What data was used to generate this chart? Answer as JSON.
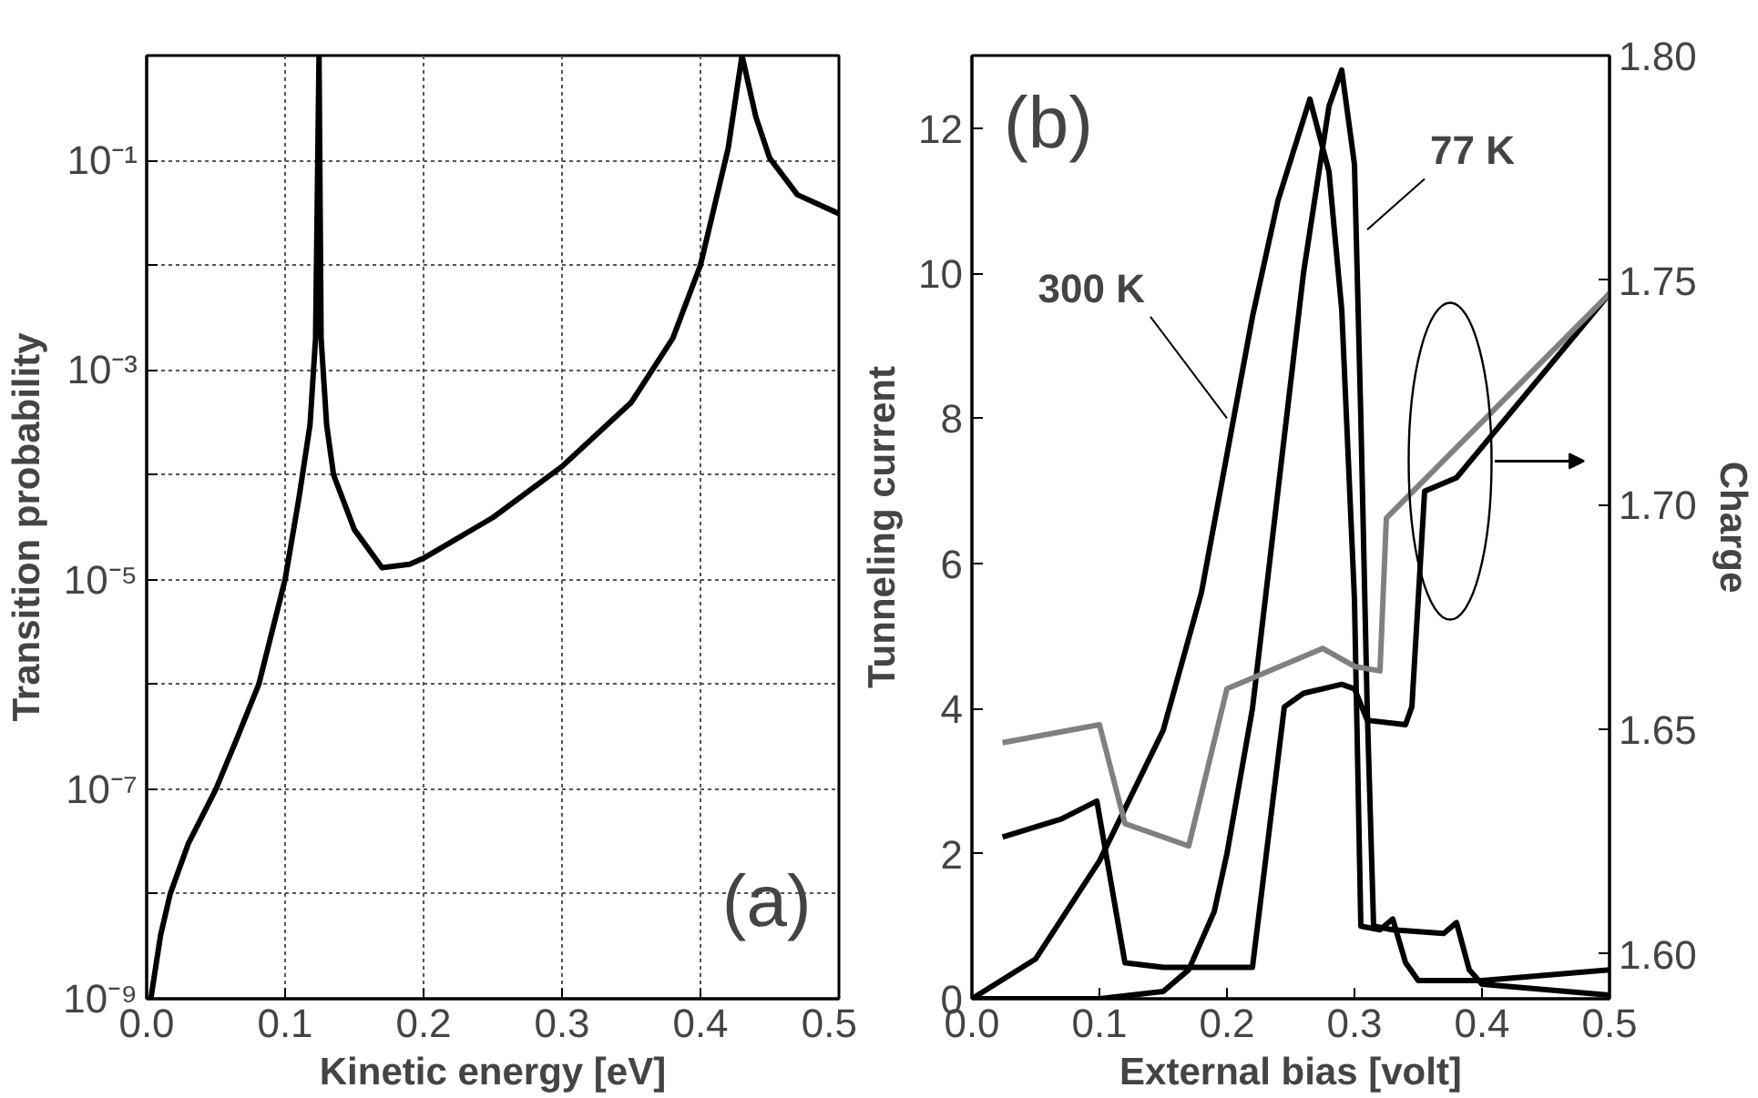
{
  "chart_data": [
    {
      "type": "line",
      "xlabel": "Kinetic energy [eV]",
      "ylabel": "Transition probability",
      "log": "y",
      "grid": true,
      "line_style": "solid",
      "xlim": [
        0,
        0.5
      ],
      "xticks": [
        {
          "value": 0,
          "label": "0.0"
        },
        {
          "value": 0.1,
          "label": "0.1"
        },
        {
          "value": 0.2,
          "label": "0.2"
        },
        {
          "value": 0.3,
          "label": "0.3"
        },
        {
          "value": 0.4,
          "label": "0.4"
        },
        {
          "value": 0.5,
          "label": "0.5"
        }
      ],
      "ylim": [
        1e-09,
        1
      ],
      "yticks": [
        {
          "value": 1e-09,
          "label": "10⁻⁹"
        },
        {
          "value": 1e-08,
          "label": null
        },
        {
          "value": 1e-07,
          "label": "10⁻⁷"
        },
        {
          "value": 1e-06,
          "label": null
        },
        {
          "value": 1e-05,
          "label": "10⁻⁵"
        },
        {
          "value": 0.0001,
          "label": null
        },
        {
          "value": 0.001,
          "label": "10⁻³"
        },
        {
          "value": 0.01,
          "label": null
        },
        {
          "value": 0.1,
          "label": "10⁻¹"
        }
      ],
      "annotations": [
        "(a)"
      ],
      "series": [
        {
          "color": "#000000",
          "x": [
            0.003,
            0.01,
            0.017,
            0.03,
            0.05,
            0.065,
            0.081,
            0.1,
            0.11,
            0.118,
            0.122,
            0.1245,
            0.126,
            0.13,
            0.135,
            0.15,
            0.17,
            0.19,
            0.2,
            0.25,
            0.3,
            0.35,
            0.38,
            0.4,
            0.42,
            0.43,
            0.44,
            0.45,
            0.47,
            0.5
          ],
          "values": [
            1e-09,
            4e-09,
            1e-08,
            3e-08,
            1e-07,
            3e-07,
            1e-06,
            1e-05,
            6e-05,
            0.0003,
            0.002,
            1,
            0.002,
            0.0003,
            0.0001,
            3e-05,
            1.3e-05,
            1.4e-05,
            1.6e-05,
            3.9e-05,
            0.00012,
            0.00049,
            0.002,
            0.01,
            0.13,
            1,
            0.26,
            0.105,
            0.047,
            0.031
          ]
        }
      ]
    },
    {
      "type": "line",
      "xlabel": "External bias [volt]",
      "ylabel": "Tunneling current",
      "y2label": "Charge",
      "grid": false,
      "line_style": "solid",
      "xlim": [
        0,
        0.5
      ],
      "xticks": [
        {
          "value": 0,
          "label": "0.0"
        },
        {
          "value": 0.1,
          "label": "0.1"
        },
        {
          "value": 0.2,
          "label": "0.2"
        },
        {
          "value": 0.3,
          "label": "0.3"
        },
        {
          "value": 0.4,
          "label": "0.4"
        },
        {
          "value": 0.5,
          "label": "0.5"
        }
      ],
      "ylim": [
        0,
        13
      ],
      "yticks": [
        0,
        2,
        4,
        6,
        8,
        10,
        12
      ],
      "y2lim": [
        1.59,
        1.8
      ],
      "y2ticks": [
        {
          "value": 1.6,
          "label": "1.60"
        },
        {
          "value": 1.65,
          "label": "1.65"
        },
        {
          "value": 1.7,
          "label": "1.70"
        },
        {
          "value": 1.75,
          "label": "1.75"
        },
        {
          "value": 1.8,
          "label": "1.80"
        }
      ],
      "annotations": [
        "(b)",
        {
          "text": "300 K",
          "x": 0.2,
          "y": 8
        },
        {
          "text": "77 K",
          "x": 0.31,
          "y": 10.6
        }
      ],
      "series": [
        {
          "color": "#000000",
          "x": [
            0,
            0.05,
            0.1,
            0.15,
            0.18,
            0.2,
            0.22,
            0.24,
            0.265,
            0.28,
            0.29,
            0.3,
            0.305,
            0.32,
            0.33,
            0.34,
            0.35,
            0.4,
            0.5
          ],
          "values": [
            0,
            0.55,
            1.9,
            3.7,
            5.6,
            7.5,
            9.4,
            11.0,
            12.4,
            11.4,
            9.5,
            5.5,
            1.0,
            0.95,
            1.1,
            0.5,
            0.25,
            0.25,
            0.4
          ]
        },
        {
          "color": "#000000",
          "x": [
            0,
            0.1,
            0.15,
            0.17,
            0.19,
            0.2,
            0.22,
            0.24,
            0.26,
            0.28,
            0.29,
            0.3,
            0.305,
            0.31,
            0.315,
            0.33,
            0.37,
            0.38,
            0.39,
            0.4,
            0.5
          ],
          "values": [
            0,
            0,
            0.1,
            0.4,
            1.2,
            2.0,
            4.0,
            7.0,
            10.0,
            12.3,
            12.8,
            11.5,
            8,
            4,
            1.0,
            0.95,
            0.9,
            1.05,
            0.4,
            0.2,
            0.05
          ]
        },
        {
          "color": "#000000",
          "axis": "y2",
          "x": [
            0.024,
            0.07,
            0.098,
            0.12,
            0.15,
            0.22,
            0.245,
            0.26,
            0.29,
            0.3,
            0.31,
            0.34,
            0.345,
            0.355,
            0.38,
            0.5
          ],
          "values": [
            1.626,
            1.63,
            1.634,
            1.598,
            1.597,
            1.597,
            1.655,
            1.658,
            1.66,
            1.659,
            1.652,
            1.651,
            1.655,
            1.703,
            1.706,
            1.747
          ]
        },
        {
          "color": "#808080",
          "axis": "y2",
          "x": [
            0.024,
            0.1,
            0.12,
            0.17,
            0.2,
            0.275,
            0.3,
            0.32,
            0.325,
            0.5
          ],
          "values": [
            1.647,
            1.651,
            1.629,
            1.624,
            1.659,
            1.668,
            1.664,
            1.663,
            1.697,
            1.747
          ]
        }
      ]
    }
  ]
}
